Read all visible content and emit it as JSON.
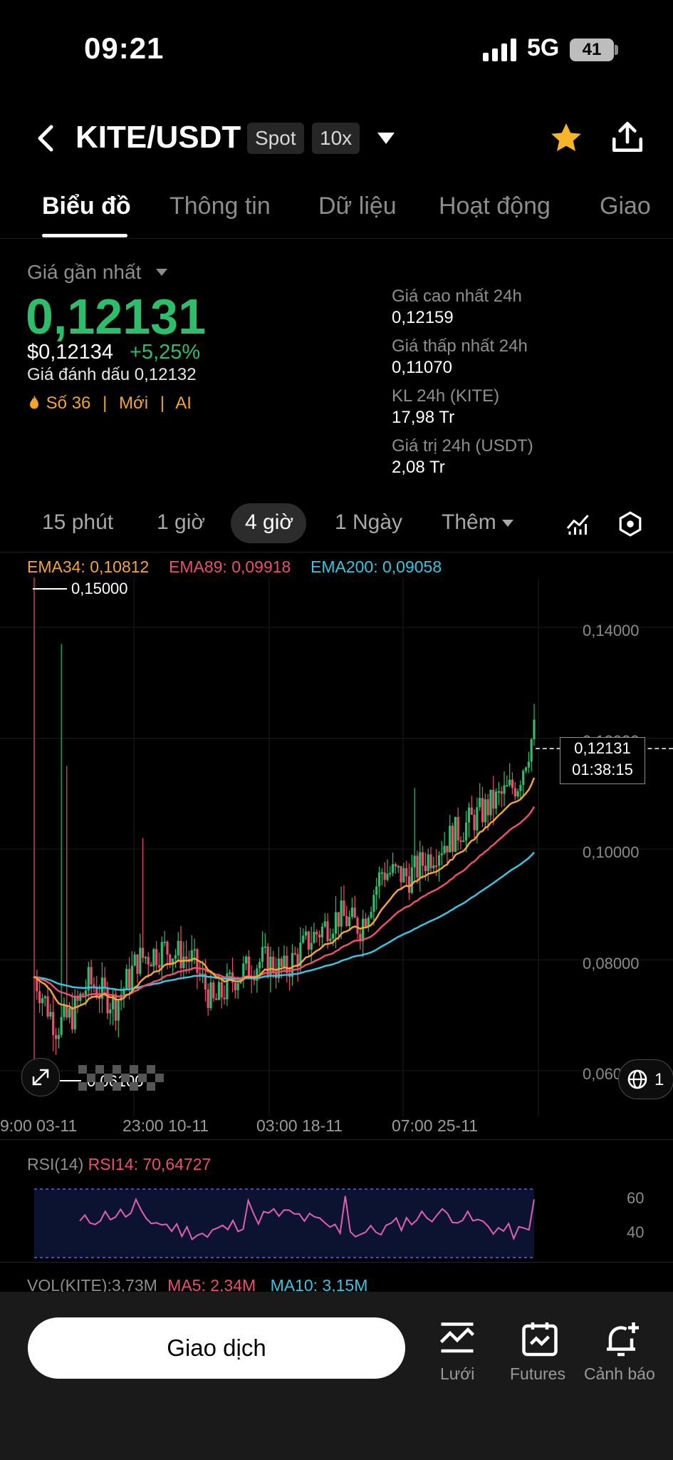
{
  "status": {
    "time": "09:21",
    "network": "5G",
    "battery": "41"
  },
  "header": {
    "pair": "KITE/USDT",
    "tag_spot": "Spot",
    "tag_leverage": "10x"
  },
  "tabs": [
    "Biểu đồ",
    "Thông tin",
    "Dữ liệu",
    "Hoạt động",
    "Giao"
  ],
  "price": {
    "label": "Giá gần nhất",
    "last": "0,12131",
    "usd": "$0,12134",
    "change": "+5,25%",
    "mark": "Giá đánh dấu 0,12132",
    "rank": "Số 36",
    "tag_new": "Mới",
    "tag_ai": "AI"
  },
  "stats": [
    {
      "label": "Giá cao nhất 24h",
      "value": "0,12159"
    },
    {
      "label": "Giá thấp nhất 24h",
      "value": "0,11070"
    },
    {
      "label": "KL 24h (KITE)",
      "value": "17,98 Tr"
    },
    {
      "label": "Giá trị 24h (USDT)",
      "value": "2,08 Tr"
    }
  ],
  "intervals": {
    "items": [
      "15 phút",
      "1 giờ",
      "4 giờ",
      "1 Ngày"
    ],
    "more": "Thêm",
    "selected": "4 giờ"
  },
  "indicators": {
    "ema34": "EMA34: 0,10812",
    "ema89": "EMA89: 0,09918",
    "ema200": "EMA200: 0,09058",
    "colors": {
      "ema34": "#f2a43a",
      "ema89": "#e8506e",
      "ema200": "#3cc3e0"
    }
  },
  "chart": {
    "high_label": "0,15000",
    "low_label": "0,06100",
    "y_ticks": [
      "0,14000",
      "0,12000",
      "0,10000",
      "0,08000",
      "0,06000"
    ],
    "current_price": "0,12131",
    "countdown": "01:38:15",
    "x_labels": [
      "9:00 03-11",
      "23:00 10-11",
      "03:00 18-11",
      "07:00 25-11"
    ],
    "page_badge": "1"
  },
  "rsi": {
    "title": "RSI(14)",
    "value": "RSI14: 70,64727",
    "ticks": [
      "60",
      "40"
    ]
  },
  "volume": {
    "title": "VOL(KITE):3,73M",
    "ma5": "MA5: 2,34M",
    "ma10": "MA10: 3,15M"
  },
  "bottom": {
    "trade": "Giao dịch",
    "grid": "Lưới",
    "futures": "Futures",
    "alert": "Cảnh báo"
  },
  "colors": {
    "up": "#2ebd6b",
    "down": "#e8506e",
    "accent": "#f0a431"
  }
}
